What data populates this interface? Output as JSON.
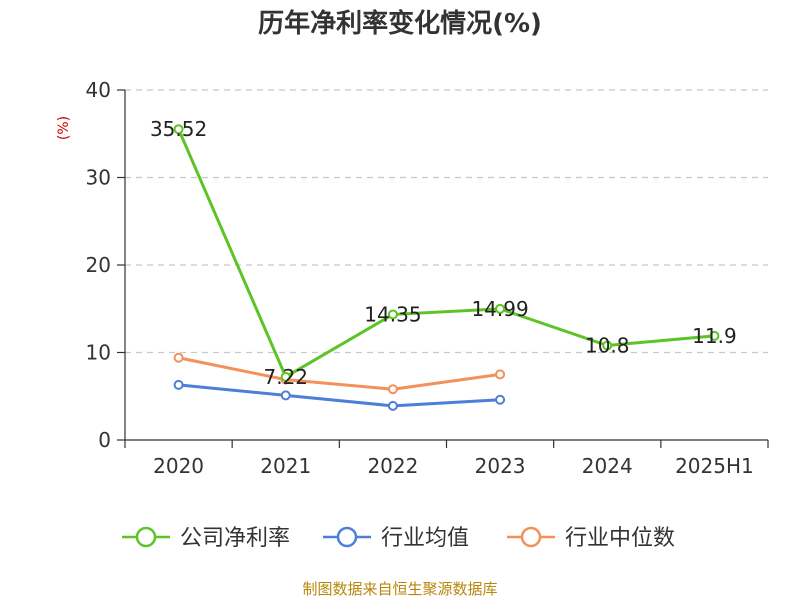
{
  "chart_data": {
    "type": "line",
    "title": "历年净利率变化情况(%)",
    "ylabel": "(%)",
    "categories": [
      "2020",
      "2021",
      "2022",
      "2023",
      "2024",
      "2025H1"
    ],
    "ylim": [
      0,
      40
    ],
    "yticks": [
      0,
      10,
      20,
      30,
      40
    ],
    "grid": true,
    "legend_position": "bottom",
    "series": [
      {
        "name": "公司净利率",
        "color": "#5cc424",
        "values": [
          35.52,
          7.22,
          14.35,
          14.99,
          10.8,
          11.9
        ],
        "labels": [
          "35.52",
          "7.22",
          "14.35",
          "14.99",
          "10.8",
          "11.9"
        ]
      },
      {
        "name": "行业均值",
        "color": "#4e7fd8",
        "values": [
          6.3,
          5.1,
          3.9,
          4.6,
          null,
          null
        ]
      },
      {
        "name": "行业中位数",
        "color": "#f4905a",
        "values": [
          9.4,
          6.9,
          5.8,
          7.5,
          null,
          null
        ]
      }
    ],
    "source": "制图数据来自恒生聚源数据库"
  }
}
